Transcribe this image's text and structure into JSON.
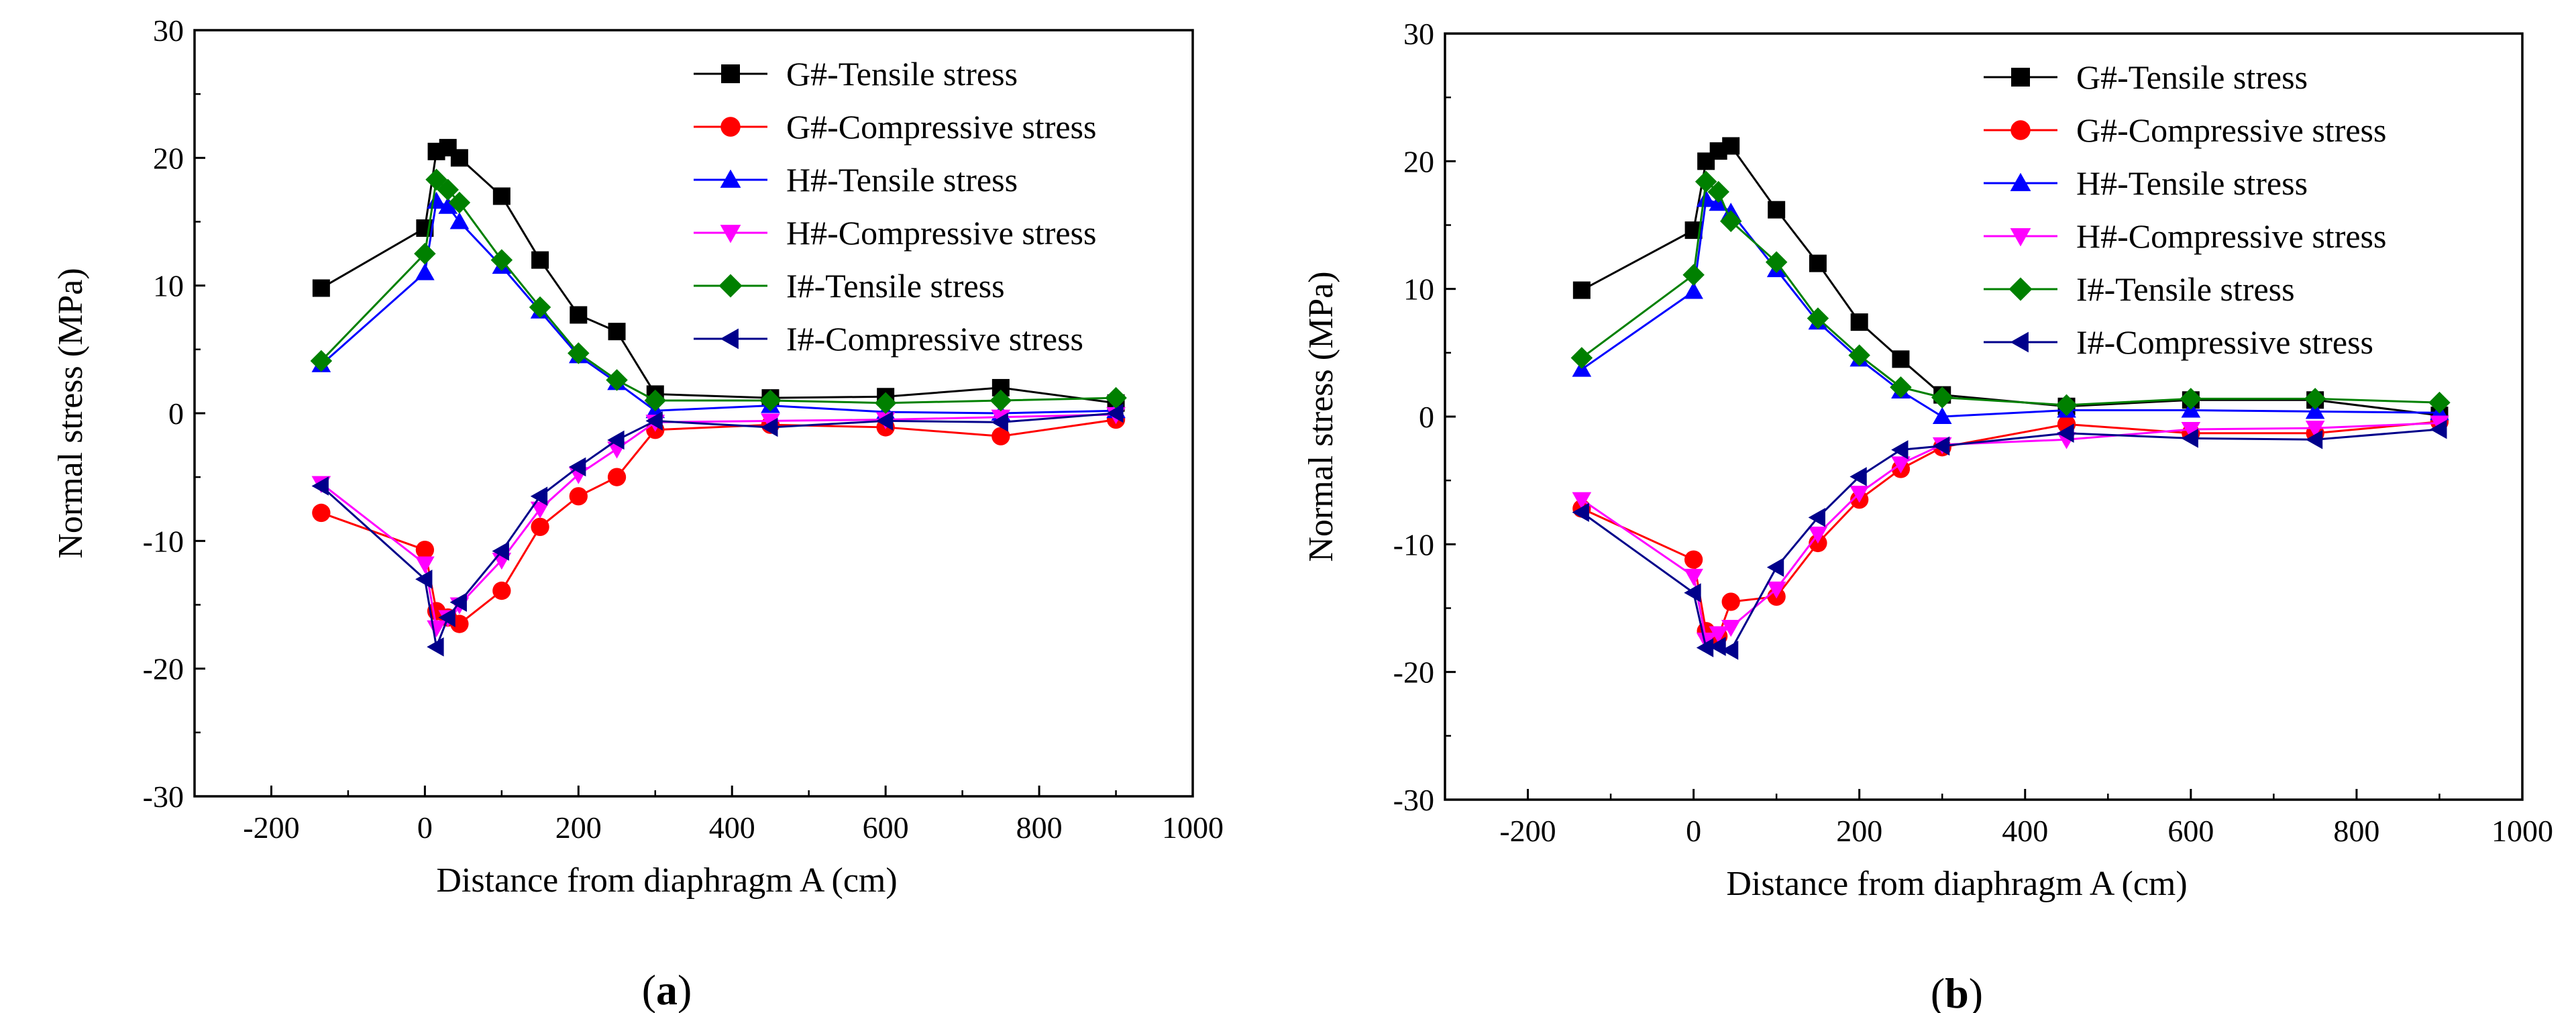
{
  "chart_data": [
    {
      "type": "line",
      "caption": "a",
      "xlabel": "Distance from diaphragm A (cm)",
      "ylabel": "Normal stress (MPa)",
      "xlim": [
        -300,
        1000
      ],
      "ylim": [
        -30,
        30
      ],
      "xticks": [
        -200,
        0,
        200,
        400,
        600,
        800,
        1000
      ],
      "yticks": [
        -30,
        -20,
        -10,
        0,
        10,
        20,
        30
      ],
      "legend_position": "top-right",
      "series": [
        {
          "name": "G#-Tensile stress",
          "color": "#000000",
          "marker": "square",
          "x": [
            -135,
            0,
            15,
            30,
            45,
            100,
            150,
            200,
            250,
            300,
            450,
            600,
            750,
            900
          ],
          "y": [
            9.8,
            14.5,
            20.5,
            20.8,
            20.0,
            17.0,
            12.0,
            7.7,
            6.4,
            1.5,
            1.2,
            1.3,
            2.0,
            0.8
          ]
        },
        {
          "name": "G#-Compressive stress",
          "color": "#ff0000",
          "marker": "circle",
          "x": [
            -135,
            0,
            15,
            30,
            45,
            100,
            150,
            200,
            250,
            300,
            450,
            600,
            750,
            900
          ],
          "y": [
            -7.8,
            -10.7,
            -15.5,
            -16.0,
            -16.5,
            -13.9,
            -8.9,
            -6.5,
            -5.0,
            -1.3,
            -0.9,
            -1.1,
            -1.8,
            -0.5
          ]
        },
        {
          "name": "H#-Tensile stress",
          "color": "#0000ff",
          "marker": "triangle-up",
          "x": [
            -135,
            0,
            15,
            30,
            45,
            100,
            150,
            200,
            250,
            300,
            450,
            600,
            750,
            900
          ],
          "y": [
            3.8,
            11.0,
            16.6,
            16.2,
            15.0,
            11.5,
            8.0,
            4.5,
            2.4,
            0.2,
            0.6,
            0.1,
            0.0,
            0.2
          ]
        },
        {
          "name": "H#-Compressive stress",
          "color": "#ff00ff",
          "marker": "triangle-down",
          "x": [
            -135,
            0,
            15,
            30,
            45,
            100,
            150,
            200,
            250,
            300,
            450,
            600,
            750,
            900
          ],
          "y": [
            -5.5,
            -11.8,
            -16.8,
            -16.0,
            -15.0,
            -11.5,
            -7.5,
            -4.8,
            -2.8,
            -0.7,
            -0.6,
            -0.5,
            -0.3,
            -0.1
          ]
        },
        {
          "name": "I#-Tensile stress",
          "color": "#008000",
          "marker": "diamond",
          "x": [
            -135,
            0,
            15,
            30,
            45,
            100,
            150,
            200,
            250,
            300,
            450,
            600,
            750,
            900
          ],
          "y": [
            4.1,
            12.5,
            18.3,
            17.5,
            16.5,
            12.0,
            8.3,
            4.7,
            2.6,
            1.0,
            1.0,
            0.8,
            1.0,
            1.2
          ]
        },
        {
          "name": "I#-Compressive stress",
          "color": "#00008b",
          "marker": "triangle-left",
          "x": [
            -135,
            0,
            15,
            30,
            45,
            100,
            150,
            200,
            250,
            300,
            450,
            600,
            750,
            900
          ],
          "y": [
            -5.7,
            -13.0,
            -18.3,
            -16.0,
            -14.8,
            -10.8,
            -6.5,
            -4.2,
            -2.1,
            -0.6,
            -1.1,
            -0.6,
            -0.7,
            0.0
          ]
        }
      ]
    },
    {
      "type": "line",
      "caption": "b",
      "xlabel": "Distance from diaphragm A (cm)",
      "ylabel": "Normal stress (MPa)",
      "xlim": [
        -300,
        1000
      ],
      "ylim": [
        -30,
        30
      ],
      "xticks": [
        -200,
        0,
        200,
        400,
        600,
        800,
        1000
      ],
      "yticks": [
        -30,
        -20,
        -10,
        0,
        10,
        20,
        30
      ],
      "legend_position": "top-right",
      "series": [
        {
          "name": "G#-Tensile stress",
          "color": "#000000",
          "marker": "square",
          "x": [
            -135,
            0,
            15,
            30,
            45,
            100,
            150,
            200,
            250,
            300,
            450,
            600,
            750,
            900
          ],
          "y": [
            9.9,
            14.6,
            20.0,
            20.8,
            21.2,
            16.2,
            12.0,
            7.4,
            4.5,
            1.7,
            0.8,
            1.3,
            1.3,
            0.1
          ]
        },
        {
          "name": "G#-Compressive stress",
          "color": "#ff0000",
          "marker": "circle",
          "x": [
            -135,
            0,
            15,
            30,
            45,
            100,
            150,
            200,
            250,
            300,
            450,
            600,
            750,
            900
          ],
          "y": [
            -7.2,
            -11.2,
            -16.8,
            -17.2,
            -14.5,
            -14.1,
            -9.9,
            -6.5,
            -4.1,
            -2.4,
            -0.6,
            -1.3,
            -1.3,
            -0.4
          ]
        },
        {
          "name": "H#-Tensile stress",
          "color": "#0000ff",
          "marker": "triangle-up",
          "x": [
            -135,
            0,
            15,
            30,
            45,
            100,
            150,
            200,
            250,
            300,
            450,
            600,
            750,
            900
          ],
          "y": [
            3.7,
            9.8,
            17.0,
            16.7,
            16.0,
            11.5,
            7.4,
            4.5,
            2.0,
            0.0,
            0.5,
            0.5,
            0.4,
            0.3
          ]
        },
        {
          "name": "H#-Compressive stress",
          "color": "#ff00ff",
          "marker": "triangle-down",
          "x": [
            -135,
            0,
            15,
            30,
            45,
            100,
            150,
            200,
            250,
            300,
            450,
            600,
            750,
            900
          ],
          "y": [
            -6.5,
            -12.5,
            -17.5,
            -17.0,
            -16.5,
            -13.5,
            -9.2,
            -6.0,
            -3.7,
            -2.2,
            -1.8,
            -1.0,
            -0.9,
            -0.5
          ]
        },
        {
          "name": "I#-Tensile stress",
          "color": "#008000",
          "marker": "diamond",
          "x": [
            -135,
            0,
            15,
            30,
            45,
            100,
            150,
            200,
            250,
            300,
            450,
            600,
            750,
            900
          ],
          "y": [
            4.6,
            11.1,
            18.4,
            17.6,
            15.3,
            12.1,
            7.7,
            4.8,
            2.3,
            1.5,
            0.9,
            1.4,
            1.4,
            1.1
          ]
        },
        {
          "name": "I#-Compressive stress",
          "color": "#00008b",
          "marker": "triangle-left",
          "x": [
            -135,
            0,
            15,
            30,
            45,
            100,
            150,
            200,
            250,
            300,
            450,
            600,
            750,
            900
          ],
          "y": [
            -7.5,
            -13.8,
            -18.1,
            -18.0,
            -18.3,
            -11.8,
            -7.9,
            -4.7,
            -2.6,
            -2.3,
            -1.3,
            -1.7,
            -1.8,
            -1.0
          ]
        }
      ]
    }
  ]
}
